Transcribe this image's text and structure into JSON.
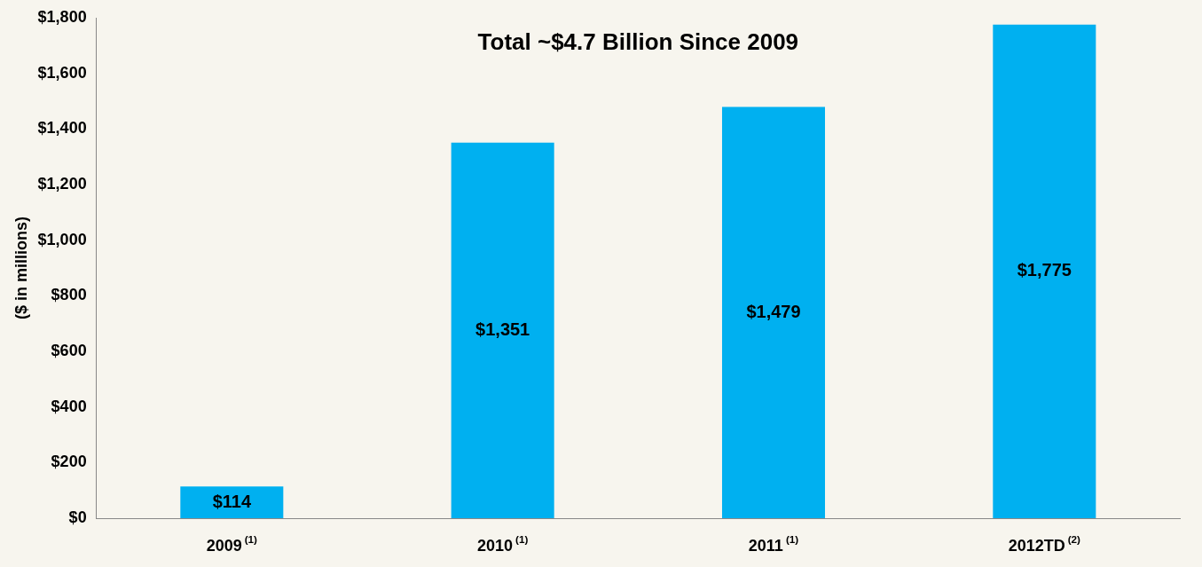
{
  "chart_data": {
    "type": "bar",
    "title": "Total ~$4.7 Billion Since 2009",
    "ylabel": "($ in millions)",
    "categories": [
      "2009$^{(1)}$",
      "2010$^{(1)}$",
      "2011$^{(1)}$",
      "2012TD$^{(2)}$"
    ],
    "values": [
      114,
      1351,
      1479,
      1775
    ],
    "color": "#00b0f0",
    "value_labels": [
      "$114",
      "$1,351",
      "$1,479",
      "$1,775"
    ],
    "ylim": [
      0,
      1800
    ],
    "yticks": [
      {
        "value": 0,
        "label": "$0"
      },
      {
        "value": 200,
        "label": "$200"
      },
      {
        "value": 400,
        "label": "$400"
      },
      {
        "value": 600,
        "label": "$600"
      },
      {
        "value": 800,
        "label": "$800"
      },
      {
        "value": 1000,
        "label": "$1,000"
      },
      {
        "value": 1200,
        "label": "$1,200"
      },
      {
        "value": 1400,
        "label": "$1,400"
      },
      {
        "value": 1600,
        "label": "$1,600"
      },
      {
        "value": 1800,
        "label": "$1,800"
      }
    ],
    "grid": false,
    "legend": false
  }
}
